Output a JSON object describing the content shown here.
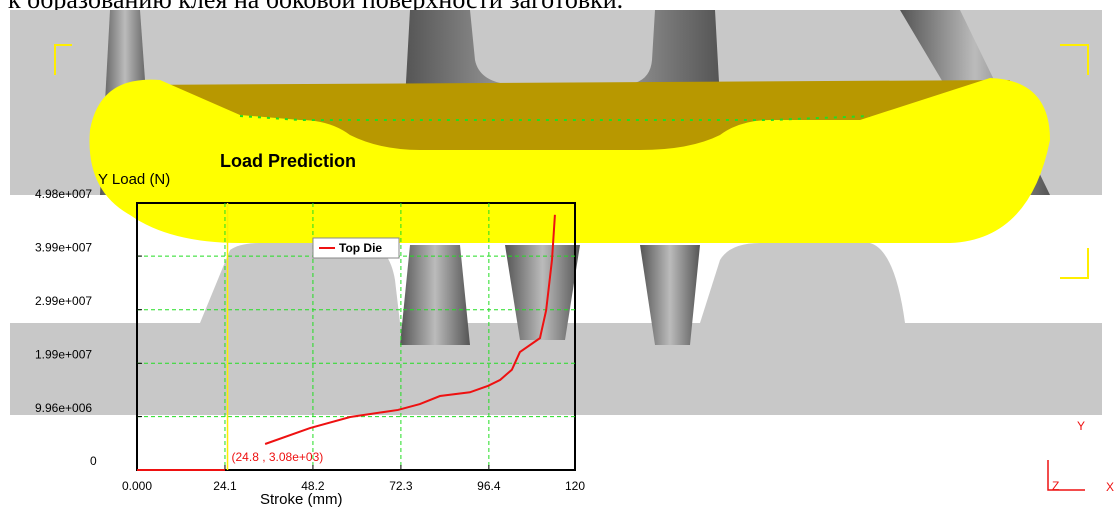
{
  "caption": "к образованию клея на боковой поверхности заготовки.",
  "chart_data": {
    "type": "line",
    "title": "Load Prediction",
    "y_label": "Y Load (N)",
    "x_label": "Stroke (mm)",
    "xlim": [
      0,
      120
    ],
    "ylim": [
      0,
      49800000
    ],
    "xticks": [
      {
        "value": 0,
        "label": "0.000"
      },
      24.1,
      48.2,
      72.3,
      96.4,
      120
    ],
    "yticks": [
      0,
      {
        "value": 9960000,
        "label": "9.96e+006"
      },
      {
        "value": 19900000,
        "label": "1.99e+007"
      },
      {
        "value": 29900000,
        "label": "2.99e+007"
      },
      {
        "value": 39900000,
        "label": "3.99e+007"
      },
      {
        "value": 49800000,
        "label": "4.98e+007"
      }
    ],
    "grid": true,
    "grid_color": "#22dd22",
    "legend": "top-center",
    "series": [
      {
        "name": "Top Die",
        "color": "#ee1111",
        "x": [
          0,
          24.1,
          null,
          35.1,
          47.4,
          58.4,
          71.5,
          77.5,
          83.0,
          91.2,
          96.2,
          99.5,
          102.7,
          104.9,
          110.4,
          112.1,
          113.7,
          114.5
        ],
        "values": [
          0,
          0,
          null,
          4850000,
          7830000,
          9890000,
          11200000,
          12300000,
          13800000,
          14500000,
          15700000,
          16800000,
          18700000,
          22000000,
          24600000,
          29800000,
          39200000,
          47600000
        ]
      }
    ],
    "marker": {
      "x": 24.8,
      "y": 3080,
      "label": "(24.8 , 3.08e+03)",
      "color": "#ffee00"
    },
    "axis_labels": [
      "Y",
      "Z",
      "X"
    ]
  }
}
